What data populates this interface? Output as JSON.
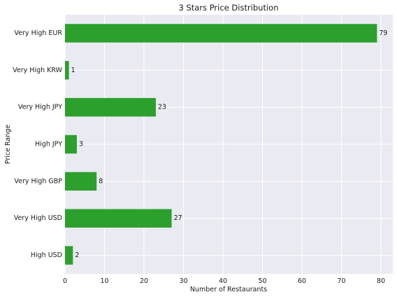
{
  "chart_data": {
    "type": "bar",
    "orientation": "horizontal",
    "title": "3 Stars Price Distribution",
    "xlabel": "Number of Restaurants",
    "ylabel": "Price Range",
    "categories": [
      "Very High EUR",
      "Very High KRW",
      "Very High JPY",
      "High JPY",
      "Very High GBP",
      "Very High USD",
      "High USD"
    ],
    "values": [
      79,
      1,
      23,
      3,
      8,
      27,
      2
    ],
    "value_labels": [
      "79",
      "1",
      "23",
      "3",
      "8",
      "27",
      "2"
    ],
    "xlim": [
      0,
      83
    ],
    "xticks": [
      0,
      10,
      20,
      30,
      40,
      50,
      60,
      70,
      80
    ],
    "xtick_labels": [
      "0",
      "10",
      "20",
      "30",
      "40",
      "50",
      "60",
      "70",
      "80"
    ],
    "grid": true,
    "colors": {
      "bar": "#2ca02c",
      "plot_background": "#eaeaf2",
      "grid": "#ffffff",
      "text": "#1a1a1a"
    }
  }
}
